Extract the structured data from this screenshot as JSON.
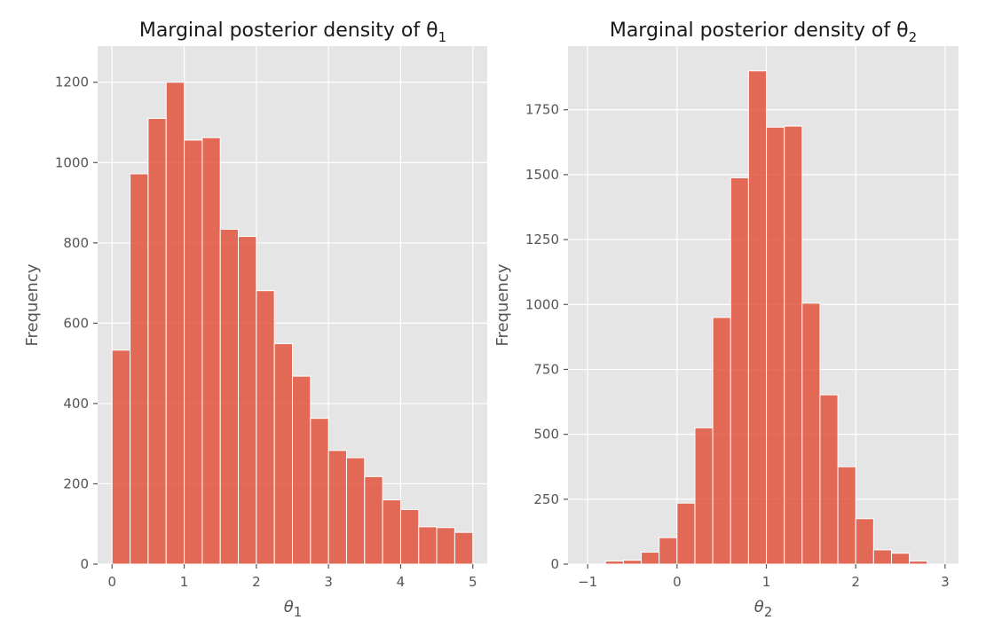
{
  "chart_data": [
    {
      "type": "bar",
      "title": "Marginal posterior density of θ",
      "title_subscript": "1",
      "xlabel": "θ",
      "xlabel_subscript": "1",
      "ylabel": "Frequency",
      "xlim": [
        -0.2,
        5.2
      ],
      "ylim": [
        0,
        1290
      ],
      "xticks": [
        0,
        1,
        2,
        3,
        4,
        5
      ],
      "xtick_labels": [
        "0",
        "1",
        "2",
        "3",
        "4",
        "5"
      ],
      "yticks": [
        0,
        200,
        400,
        600,
        800,
        1000,
        1200
      ],
      "ytick_labels": [
        "0",
        "200",
        "400",
        "600",
        "800",
        "1000",
        "1200"
      ],
      "grid": true,
      "color": "#e24a33",
      "bin_start": 0.0,
      "bin_width": 0.25,
      "values": [
        533,
        972,
        1110,
        1200,
        1056,
        1062,
        834,
        816,
        681,
        549,
        468,
        363,
        283,
        265,
        218,
        160,
        136,
        93,
        91,
        79
      ]
    },
    {
      "type": "bar",
      "title": "Marginal posterior density of θ",
      "title_subscript": "2",
      "xlabel": "θ",
      "xlabel_subscript": "2",
      "ylabel": "Frequency",
      "xlim": [
        -1.22,
        3.15
      ],
      "ylim": [
        0,
        1995
      ],
      "xticks": [
        -1,
        0,
        1,
        2,
        3
      ],
      "xtick_labels": [
        "−1",
        "0",
        "1",
        "2",
        "3"
      ],
      "yticks": [
        0,
        250,
        500,
        750,
        1000,
        1250,
        1500,
        1750
      ],
      "ytick_labels": [
        "0",
        "250",
        "500",
        "750",
        "1000",
        "1250",
        "1500",
        "1750"
      ],
      "grid": true,
      "color": "#e24a33",
      "bin_start": -1.0,
      "bin_width": 0.2,
      "values": [
        0,
        12,
        15,
        46,
        102,
        235,
        525,
        950,
        1488,
        1900,
        1683,
        1687,
        1005,
        652,
        375,
        175,
        55,
        42,
        12,
        0
      ]
    }
  ]
}
